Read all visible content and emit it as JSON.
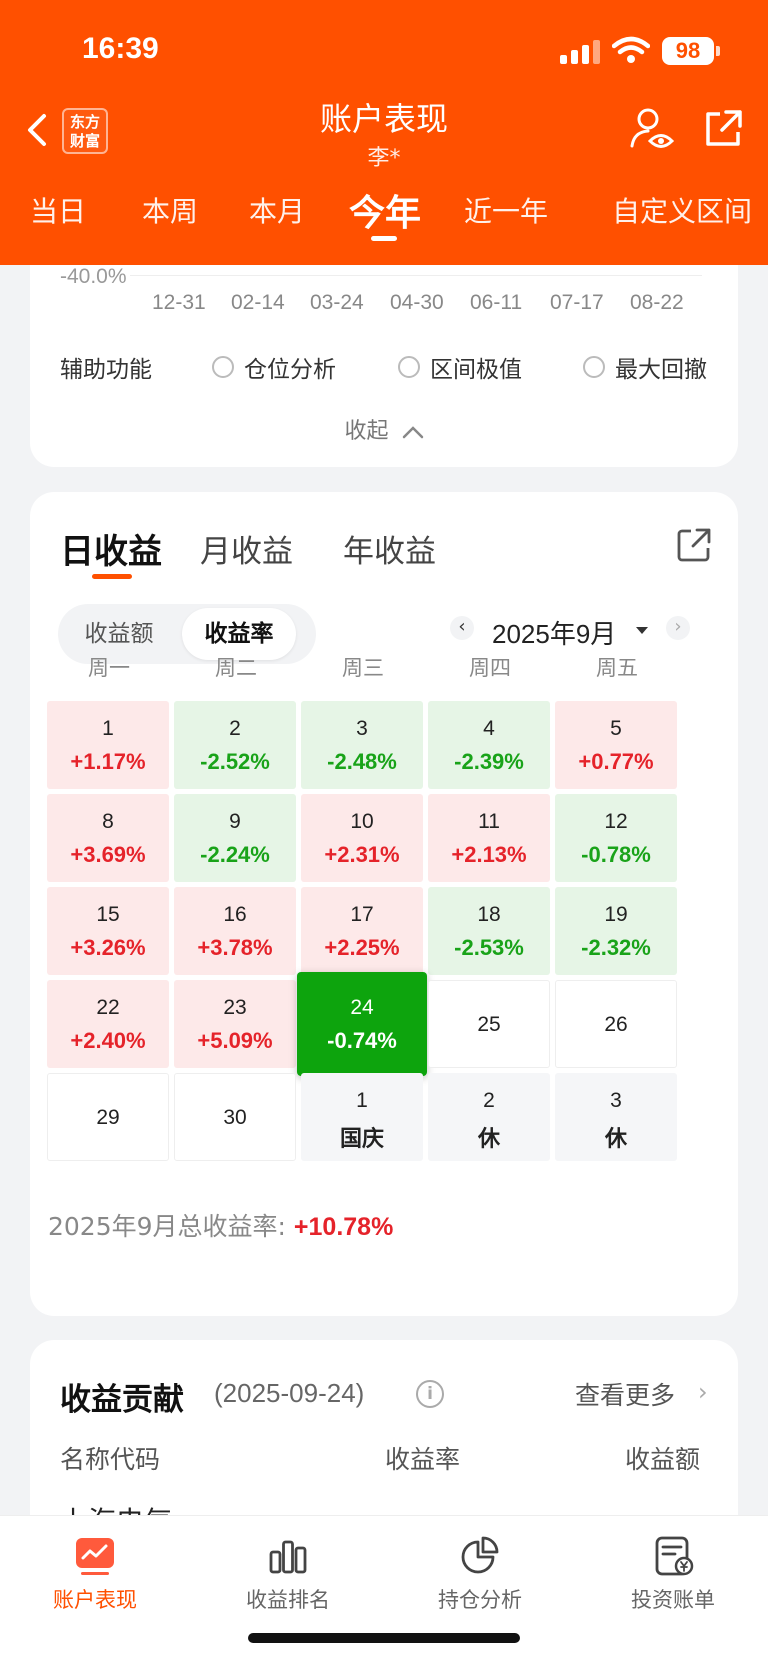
{
  "status_bar": {
    "time": "16:39",
    "battery": "98"
  },
  "header": {
    "logo_line1": "东方",
    "logo_line2": "财富",
    "title": "账户表现",
    "subtitle": "李*",
    "period_tabs": [
      {
        "label": "当日"
      },
      {
        "label": "本周"
      },
      {
        "label": "本月"
      },
      {
        "label": "今年",
        "active": true
      },
      {
        "label": "近一年"
      },
      {
        "label": "自定义区间"
      }
    ]
  },
  "chart_section": {
    "y_tick": "-40.0%",
    "x_ticks": [
      "12-31",
      "02-14",
      "03-24",
      "04-30",
      "06-11",
      "07-17",
      "08-22"
    ],
    "aux_label": "辅助功能",
    "aux_options": [
      "仓位分析",
      "区间极值",
      "最大回撤"
    ],
    "collapse_label": "收起"
  },
  "profit_section": {
    "tabs": [
      "日收益",
      "月收益",
      "年收益"
    ],
    "active_tab": "日收益",
    "segment": [
      "收益额",
      "收益率"
    ],
    "active_segment": "收益率",
    "month": "2025年9月",
    "weekdays": [
      "周一",
      "周二",
      "周三",
      "周四",
      "周五"
    ],
    "calendar": [
      [
        {
          "day": "1",
          "value": "+1.17%",
          "type": "pos"
        },
        {
          "day": "2",
          "value": "-2.52%",
          "type": "neg"
        },
        {
          "day": "3",
          "value": "-2.48%",
          "type": "neg"
        },
        {
          "day": "4",
          "value": "-2.39%",
          "type": "neg"
        },
        {
          "day": "5",
          "value": "+0.77%",
          "type": "pos"
        }
      ],
      [
        {
          "day": "8",
          "value": "+3.69%",
          "type": "pos"
        },
        {
          "day": "9",
          "value": "-2.24%",
          "type": "neg"
        },
        {
          "day": "10",
          "value": "+2.31%",
          "type": "pos"
        },
        {
          "day": "11",
          "value": "+2.13%",
          "type": "pos"
        },
        {
          "day": "12",
          "value": "-0.78%",
          "type": "neg"
        }
      ],
      [
        {
          "day": "15",
          "value": "+3.26%",
          "type": "pos"
        },
        {
          "day": "16",
          "value": "+3.78%",
          "type": "pos"
        },
        {
          "day": "17",
          "value": "+2.25%",
          "type": "pos"
        },
        {
          "day": "18",
          "value": "-2.53%",
          "type": "neg"
        },
        {
          "day": "19",
          "value": "-2.32%",
          "type": "neg"
        }
      ],
      [
        {
          "day": "22",
          "value": "+2.40%",
          "type": "pos"
        },
        {
          "day": "23",
          "value": "+5.09%",
          "type": "pos"
        },
        {
          "day": "24",
          "value": "-0.74%",
          "type": "selected"
        },
        {
          "day": "25",
          "value": "",
          "type": "empty"
        },
        {
          "day": "26",
          "value": "",
          "type": "empty"
        }
      ],
      [
        {
          "day": "29",
          "value": "",
          "type": "empty"
        },
        {
          "day": "30",
          "value": "",
          "type": "empty"
        },
        {
          "day": "1",
          "value": "国庆",
          "type": "holiday"
        },
        {
          "day": "2",
          "value": "休",
          "type": "holiday"
        },
        {
          "day": "3",
          "value": "休",
          "type": "holiday"
        }
      ]
    ],
    "total_label": "2025年9月总收益率: ",
    "total_value": "+10.78%",
    "colors": {
      "up": "#e5232a",
      "down": "#19a319",
      "selected": "#0da40d"
    }
  },
  "contribution": {
    "title": "收益贡献",
    "date": "(2025-09-24)",
    "see_more": "查看更多",
    "columns": [
      "名称代码",
      "收益率",
      "收益额"
    ],
    "partial_row": "上海电气"
  },
  "bottom_nav": [
    {
      "label": "账户表现",
      "icon": "trend-chart-icon",
      "active": true
    },
    {
      "label": "收益排名",
      "icon": "bar-chart-icon"
    },
    {
      "label": "持仓分析",
      "icon": "pie-chart-icon"
    },
    {
      "label": "投资账单",
      "icon": "bill-icon"
    }
  ],
  "accent_color": "#ff5000"
}
